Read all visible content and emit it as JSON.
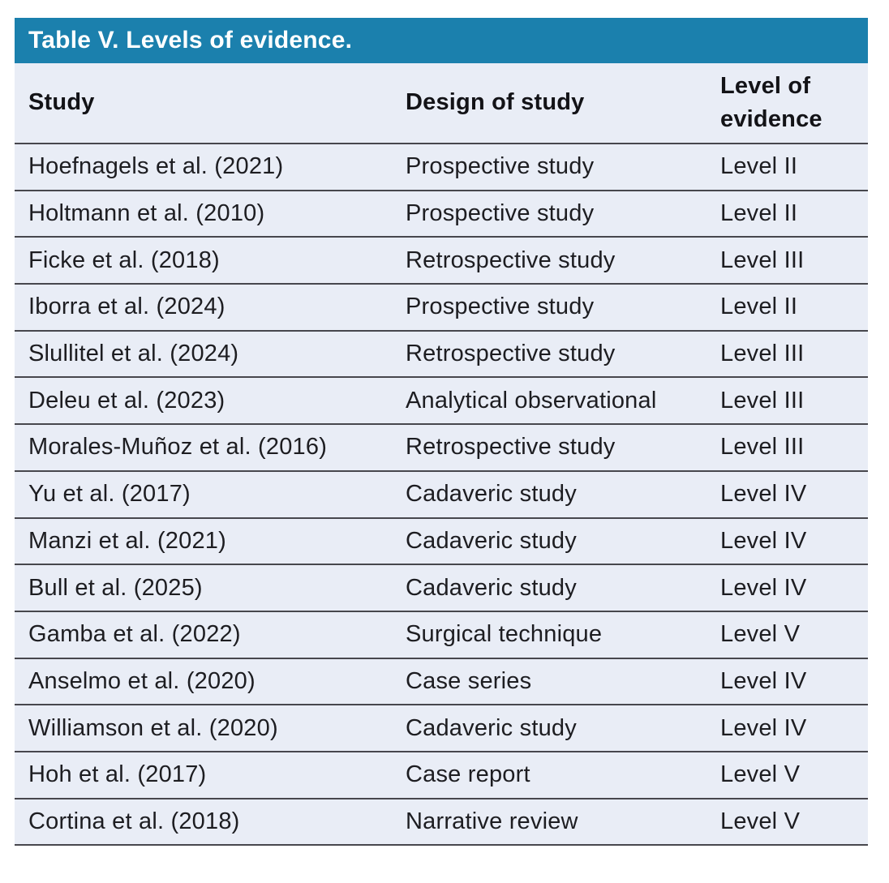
{
  "table": {
    "title": "Table V. Levels of evidence.",
    "columns": {
      "study": "Study",
      "design": "Design of study",
      "level": "Level of evidence"
    },
    "rows": [
      {
        "study": "Hoefnagels et al. (2021)",
        "design": "Prospective study",
        "level": "Level II"
      },
      {
        "study": "Holtmann et al. (2010)",
        "design": "Prospective study",
        "level": "Level II"
      },
      {
        "study": "Ficke et al. (2018)",
        "design": "Retrospective study",
        "level": "Level III"
      },
      {
        "study": "Iborra et al. (2024)",
        "design": "Prospective study",
        "level": "Level II"
      },
      {
        "study": "Slullitel et al. (2024)",
        "design": "Retrospective study",
        "level": "Level III"
      },
      {
        "study": "Deleu et al. (2023)",
        "design": "Analytical observational",
        "level": "Level III"
      },
      {
        "study": "Morales-Muñoz et al. (2016)",
        "design": "Retrospective study",
        "level": "Level III"
      },
      {
        "study": "Yu et al. (2017)",
        "design": "Cadaveric study",
        "level": "Level IV"
      },
      {
        "study": "Manzi et al. (2021)",
        "design": "Cadaveric study",
        "level": "Level IV"
      },
      {
        "study": "Bull et al. (2025)",
        "design": "Cadaveric study",
        "level": "Level IV"
      },
      {
        "study": "Gamba et al. (2022)",
        "design": "Surgical technique",
        "level": "Level V"
      },
      {
        "study": "Anselmo et al. (2020)",
        "design": "Case series",
        "level": "Level IV"
      },
      {
        "study": "Williamson et al. (2020)",
        "design": "Cadaveric study",
        "level": "Level IV"
      },
      {
        "study": "Hoh et al. (2017)",
        "design": "Case report",
        "level": "Level V"
      },
      {
        "study": "Cortina et al. (2018)",
        "design": "Narrative review",
        "level": "Level V"
      }
    ],
    "colors": {
      "header_bg": "#1b80ad",
      "body_bg": "#e9edf6",
      "divider": "#47474d",
      "title_text": "#ffffff",
      "body_text": "#1d1d21"
    }
  }
}
